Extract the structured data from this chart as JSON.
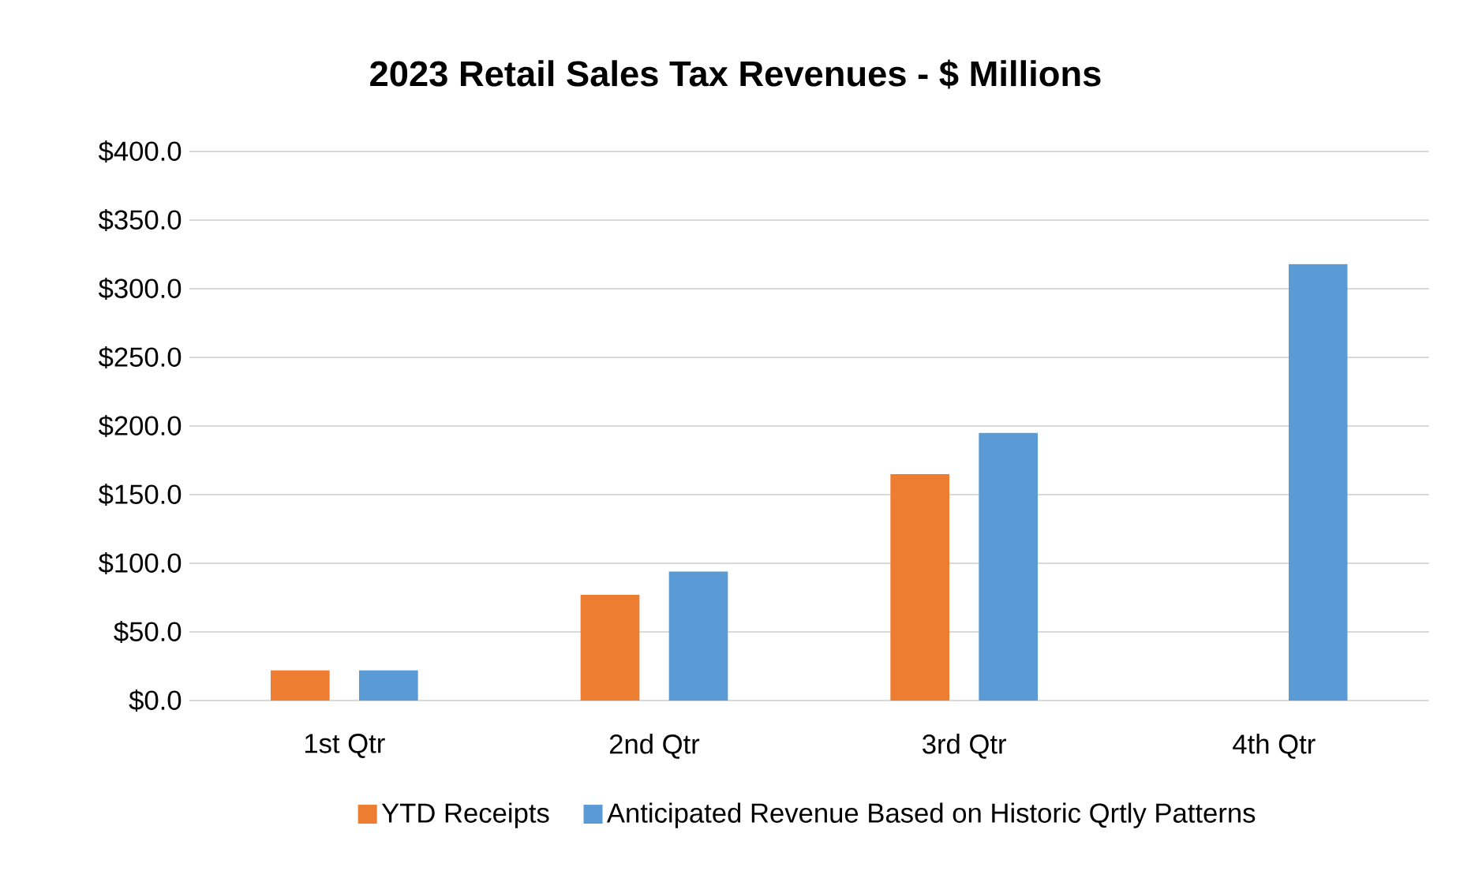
{
  "chart_data": {
    "type": "bar",
    "title": "2023 Retail Sales Tax Revenues - $ Millions",
    "categories": [
      "1st Qtr",
      "2nd Qtr",
      "3rd Qtr",
      "4th Qtr"
    ],
    "series": [
      {
        "name": "YTD Receipts",
        "color": "#ed7d31",
        "values": [
          22,
          77,
          165,
          null
        ]
      },
      {
        "name": "Anticipated Revenue Based on Historic Qrtly Patterns",
        "color": "#5b9bd5",
        "values": [
          22,
          94,
          195,
          318
        ]
      }
    ],
    "ylim": [
      0,
      400
    ],
    "yticks": [
      {
        "value": 0,
        "label": "$0.0"
      },
      {
        "value": 50,
        "label": "$50.0"
      },
      {
        "value": 100,
        "label": "$100.0"
      },
      {
        "value": 150,
        "label": "$150.0"
      },
      {
        "value": 200,
        "label": "$200.0"
      },
      {
        "value": 250,
        "label": "$250.0"
      },
      {
        "value": 300,
        "label": "$300.0"
      },
      {
        "value": 350,
        "label": "$350.0"
      },
      {
        "value": 400,
        "label": "$400.0"
      }
    ],
    "grid": "y",
    "legend": "bottom"
  }
}
